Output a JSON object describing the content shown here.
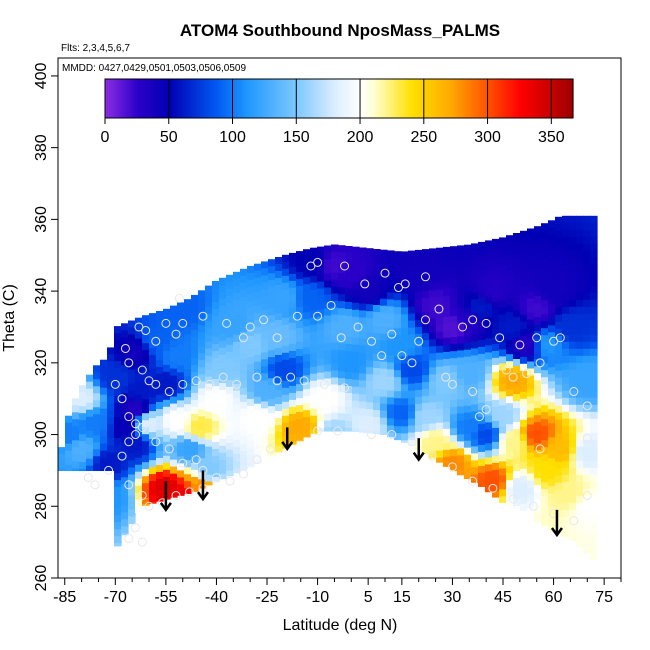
{
  "chart_data": {
    "type": "heatmap",
    "title": "ATOM4 Southbound NposMass_PALMS",
    "subtitle_flights": "Flts: 2,3,4,5,6,7",
    "subtitle_dates": "MMDD: 0427,0429,0501,0503,0506,0509",
    "xlabel": "Latitude (deg N)",
    "ylabel": "Theta (C)",
    "xlim": [
      -87,
      80
    ],
    "ylim": [
      260,
      405
    ],
    "x_ticks": [
      -85,
      -70,
      -55,
      -40,
      -25,
      -10,
      5,
      15,
      30,
      45,
      60,
      75
    ],
    "y_ticks": [
      260,
      280,
      300,
      320,
      340,
      360,
      380,
      400
    ],
    "colorbar": {
      "min": 0,
      "max": 367,
      "ticks": [
        0,
        50,
        100,
        150,
        200,
        250,
        300,
        350
      ],
      "stops": [
        {
          "v": 0,
          "color": "#8A2BE2"
        },
        {
          "v": 25,
          "color": "#2A00C8"
        },
        {
          "v": 50,
          "color": "#0000B4"
        },
        {
          "v": 85,
          "color": "#0055F0"
        },
        {
          "v": 110,
          "color": "#1E96FF"
        },
        {
          "v": 150,
          "color": "#7FC9FF"
        },
        {
          "v": 180,
          "color": "#DCEEFF"
        },
        {
          "v": 200,
          "color": "#FFFFFF"
        },
        {
          "v": 210,
          "color": "#FFFFD0"
        },
        {
          "v": 240,
          "color": "#FFE000"
        },
        {
          "v": 270,
          "color": "#FFAA00"
        },
        {
          "v": 300,
          "color": "#FF5000"
        },
        {
          "v": 325,
          "color": "#FF0000"
        },
        {
          "v": 367,
          "color": "#9B0000"
        }
      ]
    },
    "domain_top": [
      [
        -87,
        292
      ],
      [
        -84,
        305
      ],
      [
        -81,
        312
      ],
      [
        -76,
        319
      ],
      [
        -72,
        322
      ],
      [
        -70,
        330
      ],
      [
        -62,
        333
      ],
      [
        -55,
        335
      ],
      [
        -48,
        338
      ],
      [
        -40,
        343
      ],
      [
        -30,
        347
      ],
      [
        -20,
        350
      ],
      [
        -12,
        352
      ],
      [
        -5,
        353
      ],
      [
        5,
        352
      ],
      [
        15,
        351
      ],
      [
        25,
        352
      ],
      [
        35,
        353
      ],
      [
        45,
        355
      ],
      [
        55,
        358
      ],
      [
        60,
        360
      ],
      [
        62,
        361
      ]
    ],
    "domain_bottom": [
      [
        -70,
        268
      ],
      [
        -62,
        280
      ],
      [
        -55,
        282
      ],
      [
        -47,
        284
      ],
      [
        -40,
        287
      ],
      [
        -30,
        291
      ],
      [
        -20,
        296
      ],
      [
        -14,
        299
      ],
      [
        -10,
        301
      ],
      [
        0,
        301
      ],
      [
        10,
        300
      ],
      [
        18,
        297
      ],
      [
        25,
        293
      ],
      [
        32,
        289
      ],
      [
        38,
        286
      ],
      [
        45,
        281
      ],
      [
        50,
        279
      ],
      [
        55,
        276
      ],
      [
        60,
        273
      ],
      [
        65,
        271
      ],
      [
        72,
        265
      ]
    ],
    "domain_left": -87,
    "domain_right": 72,
    "field_points": [
      [
        -72,
        292,
        60
      ],
      [
        -67,
        302,
        45
      ],
      [
        -64,
        297,
        60
      ],
      [
        -64,
        307,
        30
      ],
      [
        -62,
        312,
        60
      ],
      [
        -70,
        316,
        70
      ],
      [
        -64,
        323,
        40
      ],
      [
        -58,
        326,
        90
      ],
      [
        -55,
        314,
        60
      ],
      [
        -52,
        322,
        100
      ],
      [
        -50,
        335,
        90
      ],
      [
        -52,
        304,
        200
      ],
      [
        -48,
        296,
        120
      ],
      [
        -55,
        285,
        340
      ],
      [
        -50,
        283,
        330
      ],
      [
        -45,
        285,
        280
      ],
      [
        -42,
        290,
        150
      ],
      [
        -45,
        302,
        230
      ],
      [
        -40,
        310,
        200
      ],
      [
        -38,
        318,
        150
      ],
      [
        -35,
        330,
        120
      ],
      [
        -30,
        325,
        150
      ],
      [
        -28,
        305,
        200
      ],
      [
        -25,
        312,
        130
      ],
      [
        -20,
        318,
        80
      ],
      [
        -22,
        327,
        140
      ],
      [
        -20,
        338,
        120
      ],
      [
        -12,
        338,
        90
      ],
      [
        -12,
        348,
        50
      ],
      [
        -5,
        347,
        20
      ],
      [
        0,
        345,
        25
      ],
      [
        5,
        340,
        40
      ],
      [
        10,
        332,
        130
      ],
      [
        15,
        325,
        110
      ],
      [
        18,
        318,
        80
      ],
      [
        20,
        345,
        40
      ],
      [
        25,
        336,
        20
      ],
      [
        30,
        330,
        15
      ],
      [
        35,
        332,
        30
      ],
      [
        38,
        335,
        60
      ],
      [
        42,
        340,
        30
      ],
      [
        48,
        330,
        60
      ],
      [
        52,
        325,
        30
      ],
      [
        55,
        335,
        20
      ],
      [
        60,
        340,
        40
      ],
      [
        65,
        330,
        70
      ],
      [
        70,
        315,
        120
      ],
      [
        -15,
        302,
        270
      ],
      [
        -5,
        300,
        160
      ],
      [
        5,
        303,
        180
      ],
      [
        10,
        315,
        160
      ],
      [
        15,
        306,
        90
      ],
      [
        22,
        305,
        160
      ],
      [
        25,
        298,
        220
      ],
      [
        30,
        292,
        280
      ],
      [
        35,
        302,
        100
      ],
      [
        35,
        317,
        130
      ],
      [
        40,
        300,
        80
      ],
      [
        42,
        287,
        300
      ],
      [
        45,
        305,
        160
      ],
      [
        48,
        315,
        270
      ],
      [
        48,
        298,
        220
      ],
      [
        50,
        285,
        180
      ],
      [
        55,
        300,
        300
      ],
      [
        58,
        290,
        240
      ],
      [
        62,
        296,
        260
      ],
      [
        65,
        283,
        220
      ],
      [
        70,
        280,
        200
      ],
      [
        70,
        295,
        180
      ],
      [
        -80,
        296,
        130
      ],
      [
        -80,
        310,
        180
      ],
      [
        -76,
        303,
        100
      ],
      [
        -72,
        282,
        110
      ],
      [
        -84,
        300,
        100
      ],
      [
        -60,
        303,
        180
      ],
      [
        0,
        320,
        110
      ],
      [
        -8,
        310,
        200
      ],
      [
        -2,
        330,
        130
      ],
      [
        28,
        315,
        150
      ],
      [
        58,
        325,
        110
      ]
    ],
    "stations": [
      [
        -63,
        330
      ],
      [
        -61,
        329
      ],
      [
        -58,
        326
      ],
      [
        -55,
        331
      ],
      [
        -52,
        328
      ],
      [
        -50,
        331
      ],
      [
        -51,
        338
      ],
      [
        -44,
        333
      ],
      [
        -37,
        331
      ],
      [
        -32,
        327
      ],
      [
        -30,
        330
      ],
      [
        -26,
        332
      ],
      [
        -22,
        327
      ],
      [
        -16,
        333
      ],
      [
        -10,
        333
      ],
      [
        -6,
        336
      ],
      [
        -3,
        327
      ],
      [
        2,
        330
      ],
      [
        6,
        326
      ],
      [
        9,
        322
      ],
      [
        12,
        328
      ],
      [
        15,
        322
      ],
      [
        18,
        320
      ],
      [
        20,
        326
      ],
      [
        22,
        332
      ],
      [
        26,
        335
      ],
      [
        33,
        330
      ],
      [
        36,
        332
      ],
      [
        40,
        331
      ],
      [
        44,
        327
      ],
      [
        50,
        325
      ],
      [
        55,
        327
      ],
      [
        60,
        326
      ],
      [
        62,
        327
      ],
      [
        -12,
        347
      ],
      [
        -10,
        348
      ],
      [
        -2,
        347
      ],
      [
        4,
        342
      ],
      [
        10,
        345
      ],
      [
        14,
        341
      ],
      [
        16,
        342
      ],
      [
        22,
        344
      ],
      [
        -67,
        324
      ],
      [
        -66,
        320
      ],
      [
        -62,
        318
      ],
      [
        -60,
        315
      ],
      [
        -58,
        314
      ],
      [
        -54,
        312
      ],
      [
        -50,
        314
      ],
      [
        -46,
        315
      ],
      [
        -42,
        314
      ],
      [
        -38,
        316
      ],
      [
        -34,
        314
      ],
      [
        -28,
        316
      ],
      [
        -22,
        315
      ],
      [
        -18,
        316
      ],
      [
        -14,
        315
      ],
      [
        -8,
        314
      ],
      [
        -2,
        313
      ],
      [
        28,
        316
      ],
      [
        30,
        314
      ],
      [
        36,
        312
      ],
      [
        46,
        318
      ],
      [
        48,
        316
      ],
      [
        52,
        317
      ],
      [
        56,
        320
      ],
      [
        -70,
        314
      ],
      [
        -68,
        310
      ],
      [
        -66,
        305
      ],
      [
        -64,
        303
      ],
      [
        -62,
        302
      ],
      [
        -66,
        298
      ],
      [
        -64,
        300
      ],
      [
        -68,
        294
      ],
      [
        -58,
        298
      ],
      [
        -54,
        296
      ],
      [
        -50,
        292
      ],
      [
        -46,
        293
      ],
      [
        -44,
        290
      ],
      [
        -40,
        288
      ],
      [
        -36,
        287
      ],
      [
        -32,
        289
      ],
      [
        -28,
        293
      ],
      [
        -24,
        296
      ],
      [
        -72,
        290
      ],
      [
        -76,
        286
      ],
      [
        -78,
        288
      ],
      [
        -66,
        286
      ],
      [
        -62,
        283
      ],
      [
        -60,
        280
      ],
      [
        -56,
        281
      ],
      [
        -52,
        283
      ],
      [
        -48,
        284
      ],
      [
        -44,
        285
      ],
      [
        -10,
        301
      ],
      [
        -4,
        301
      ],
      [
        6,
        300
      ],
      [
        12,
        300
      ],
      [
        18,
        298
      ],
      [
        24,
        294
      ],
      [
        30,
        291
      ],
      [
        36,
        287
      ],
      [
        42,
        285
      ],
      [
        48,
        282
      ],
      [
        54,
        280
      ],
      [
        60,
        278
      ],
      [
        66,
        276
      ],
      [
        70,
        283
      ],
      [
        70,
        299
      ],
      [
        70,
        308
      ],
      [
        66,
        312
      ],
      [
        56,
        296
      ],
      [
        40,
        307
      ],
      [
        38,
        305
      ],
      [
        -64,
        274
      ],
      [
        -62,
        270
      ],
      [
        -66,
        271
      ]
    ],
    "arrows": [
      {
        "x": -55,
        "y_top": 287,
        "y_bottom": 279
      },
      {
        "x": -44,
        "y_top": 290,
        "y_bottom": 282
      },
      {
        "x": -19,
        "y_top": 302,
        "y_bottom": 296
      },
      {
        "x": 20,
        "y_top": 299,
        "y_bottom": 293
      },
      {
        "x": 61,
        "y_top": 279,
        "y_bottom": 272
      }
    ]
  }
}
